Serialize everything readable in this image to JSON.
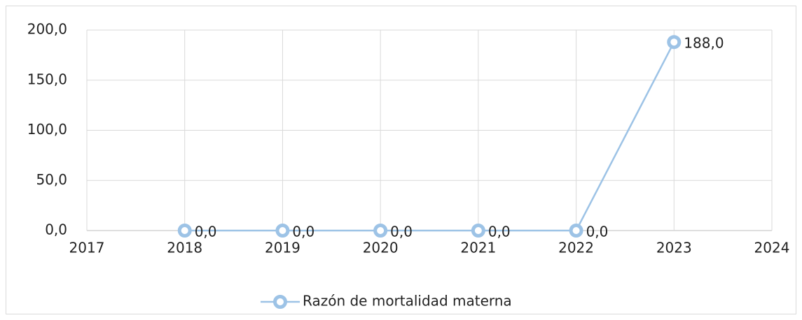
{
  "chart_data": {
    "type": "line",
    "x": [
      2018,
      2019,
      2020,
      2021,
      2022,
      2023
    ],
    "series": [
      {
        "name": "Razón de mortalidad materna",
        "color": "#9dc3e6",
        "values": [
          0,
          0,
          0,
          0,
          0,
          188
        ],
        "value_labels": [
          "0,0",
          "0,0",
          "0,0",
          "0,0",
          "0,0",
          "188,0"
        ]
      }
    ],
    "xlim": [
      2017,
      2024
    ],
    "xticks": [
      2017,
      2018,
      2019,
      2020,
      2021,
      2022,
      2023,
      2024
    ],
    "ylim": [
      0,
      200
    ],
    "yticks": [
      {
        "value": 0,
        "label": "0,0"
      },
      {
        "value": 50,
        "label": "50,0"
      },
      {
        "value": 100,
        "label": "100,0"
      },
      {
        "value": 150,
        "label": "150,0"
      },
      {
        "value": 200,
        "label": "200,0"
      }
    ],
    "grid": true,
    "legend": "bottom"
  }
}
